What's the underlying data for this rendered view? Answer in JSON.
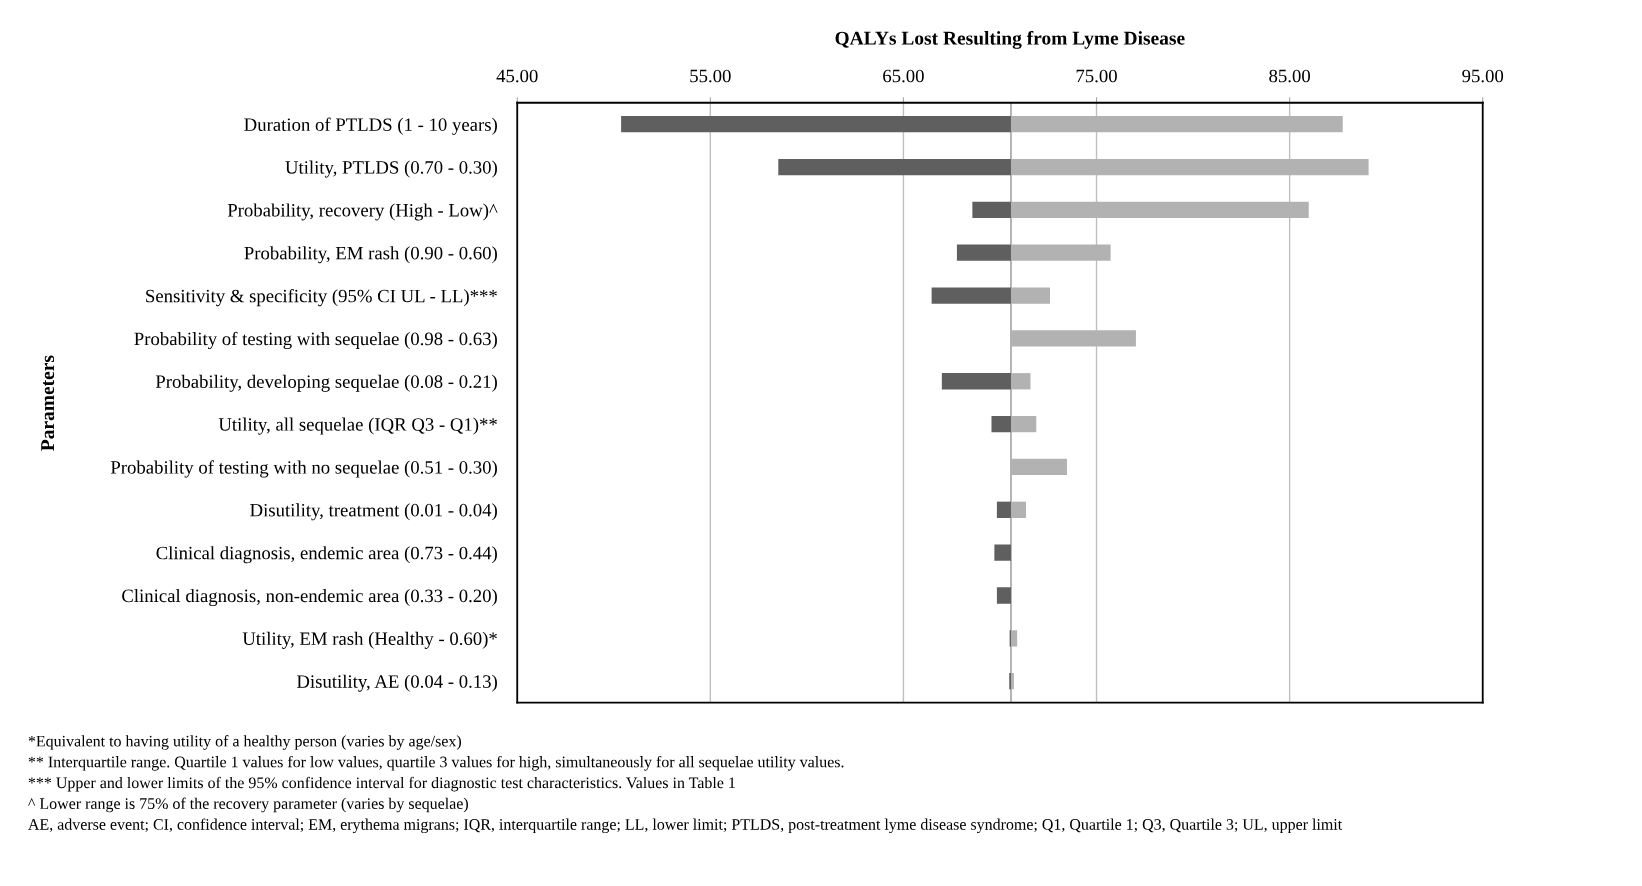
{
  "chart_data": {
    "type": "bar",
    "orientation": "horizontal",
    "title": "QALYs Lost Resulting from Lyme Disease",
    "ylabel": "Parameters",
    "categories": [
      "Duration of PTLDS (1 - 10 years)",
      "Utility, PTLDS (0.70 - 0.30)",
      "Probability, recovery (High - Low)^",
      "Probability, EM rash (0.90 - 0.60)",
      "Sensitivity & specificity (95% CI UL - LL)***",
      "Probability of testing with sequelae (0.98 - 0.63)",
      "Probability, developing sequelae (0.08 - 0.21)",
      "Utility, all sequelae (IQR Q3 - Q1)**",
      "Probability of testing with no sequelae (0.51 - 0.30)",
      "Disutility, treatment (0.01 - 0.04)",
      "Clinical diagnosis, endemic area (0.73 - 0.44)",
      "Clinical diagnosis, non-endemic area (0.33 - 0.20)",
      "Utility, EM rash (Healthy - 0.60)*",
      "Disutility, AE (0.04 - 0.13)"
    ],
    "series": [
      {
        "color": "#5f5f5f",
        "base": [
          50.38,
          58.52,
          68.57,
          67.77,
          66.46,
          null,
          66.99,
          69.56,
          null,
          69.84,
          69.71,
          69.84,
          70.5,
          70.48
        ],
        "values": [
          20.19,
          12.05,
          2.0,
          2.8,
          4.11,
          null,
          3.58,
          1.01,
          null,
          0.73,
          0.86,
          0.73,
          0.07,
          0.09
        ]
      },
      {
        "color": "#b2b2b2",
        "base": [
          70.57,
          70.57,
          70.57,
          70.57,
          70.57,
          70.57,
          70.57,
          70.57,
          70.57,
          70.57,
          null,
          null,
          70.57,
          70.57
        ],
        "values": [
          17.18,
          18.52,
          15.42,
          5.16,
          2.02,
          6.47,
          1.01,
          1.31,
          2.9,
          0.78,
          null,
          null,
          0.32,
          0.15
        ]
      }
    ],
    "xlim": [
      45,
      95
    ],
    "xticks": [
      {
        "value": 45,
        "label": "45.00"
      },
      {
        "value": 55,
        "label": "55.00"
      },
      {
        "value": 65,
        "label": "65.00"
      },
      {
        "value": 75,
        "label": "75.00"
      },
      {
        "value": 85,
        "label": "85.00"
      },
      {
        "value": 95,
        "label": "95.00"
      }
    ],
    "ref_lines": [
      {
        "axis": "x",
        "value": 70.57,
        "color": "#a6a6a6"
      }
    ],
    "grid": "x",
    "annotations": [
      "*Equivalent to having utility of a healthy person (varies by age/sex)",
      "** Interquartile range. Quartile 1 values for low values, quartile 3 values for high, simultaneously for all sequelae utility values.",
      "*** Upper and lower limits of the 95% confidence interval for diagnostic test characteristics. Values in Table 1",
      "^ Lower range is 75% of the recovery parameter (varies by sequelae)",
      "AE, adverse event; CI, confidence interval; EM, erythema migrans; IQR, interquartile range; LL, lower limit; PTLDS, post-treatment lyme disease syndrome; Q1, Quartile 1; Q3, Quartile 3; UL, upper limit"
    ]
  }
}
